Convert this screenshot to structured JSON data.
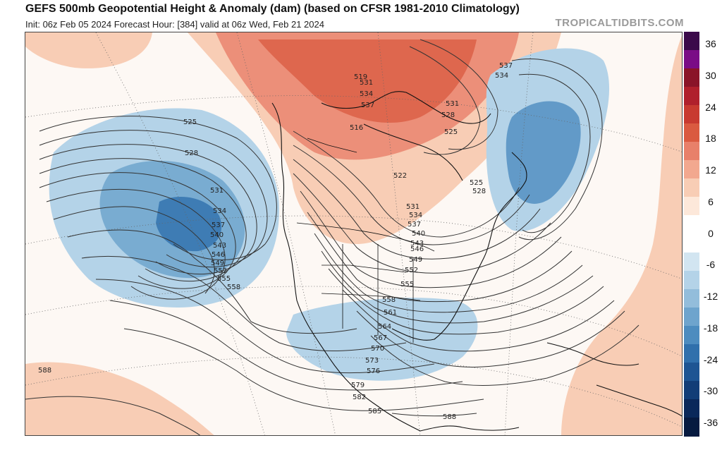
{
  "header": {
    "title": "GEFS 500mb Geopotential Height & Anomaly (dam) (based on CFSR 1981-2010 Climatology)",
    "subtitle": "Init: 06z Feb 05 2024   Forecast Hour: [384]   valid at 06z Wed, Feb 21 2024",
    "watermark": "TROPICALTIDBITS.COM"
  },
  "colorbar": {
    "labels": [
      "36",
      "30",
      "24",
      "18",
      "12",
      "6",
      "0",
      "-6",
      "-12",
      "-18",
      "-24",
      "-30",
      "-36"
    ],
    "colors": [
      "#3b0a4a",
      "#7a0c86",
      "#8a1428",
      "#b0202c",
      "#c83a30",
      "#da5a40",
      "#e8806a",
      "#f2a88f",
      "#f8cdb5",
      "#fde8da",
      "#ffffff",
      "#ffffff",
      "#d2e5f1",
      "#b4d3e8",
      "#93bddb",
      "#6ea4cd",
      "#4d8cbf",
      "#3070ac",
      "#1e5593",
      "#123d77",
      "#0a285a",
      "#061a40"
    ]
  },
  "contour_labels": [
    "525",
    "528",
    "531",
    "534",
    "537",
    "540",
    "543",
    "546",
    "549",
    "552",
    "555",
    "558",
    "516",
    "519",
    "522",
    "525",
    "528",
    "531",
    "534",
    "537",
    "540",
    "543",
    "546",
    "549",
    "552",
    "555",
    "558",
    "561",
    "564",
    "567",
    "570",
    "573",
    "576",
    "579",
    "582",
    "585",
    "588",
    "588",
    "531",
    "534",
    "537",
    "525",
    "528",
    "531",
    "534",
    "537"
  ]
}
